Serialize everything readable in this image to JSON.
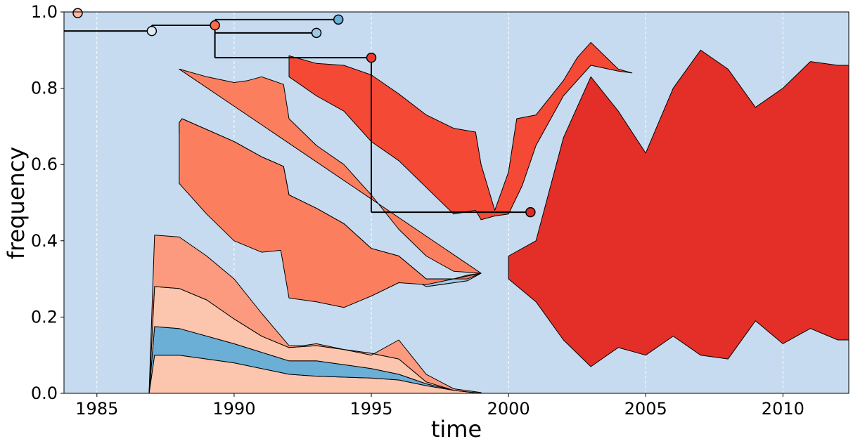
{
  "chart_data": {
    "type": "area",
    "title": "",
    "xlabel": "time",
    "ylabel": "frequency",
    "xlim": [
      1983.8,
      2012.4
    ],
    "ylim": [
      0.0,
      1.0
    ],
    "x_ticks": [
      1985,
      1990,
      1995,
      2000,
      2005,
      2010
    ],
    "y_ticks": [
      0.0,
      0.2,
      0.4,
      0.6,
      0.8,
      1.0
    ],
    "x_tick_labels": [
      "1985",
      "1990",
      "1995",
      "2000",
      "2005",
      "2010"
    ],
    "y_tick_labels": [
      "0.0",
      "0.2",
      "0.4",
      "0.6",
      "0.8",
      "1.0"
    ],
    "vertical_gridlines": true,
    "background_color": "#c6dbef",
    "bands": [
      {
        "color": "#fcc5ad",
        "upper": [
          [
            1986.9,
            0.0
          ],
          [
            1987.1,
            0.1
          ],
          [
            1988,
            0.1
          ],
          [
            1990,
            0.08
          ],
          [
            1992,
            0.05
          ],
          [
            1993,
            0.045
          ],
          [
            1995,
            0.04
          ],
          [
            1996,
            0.035
          ],
          [
            1997,
            0.02
          ],
          [
            1998,
            0.008
          ],
          [
            1999,
            0.0
          ]
        ],
        "lower": [
          [
            1999,
            0.0
          ],
          [
            1986.9,
            0.0
          ]
        ]
      },
      {
        "color": "#6baed6",
        "upper": [
          [
            1986.9,
            0.0
          ],
          [
            1987.1,
            0.175
          ],
          [
            1988,
            0.17
          ],
          [
            1990,
            0.13
          ],
          [
            1992,
            0.085
          ],
          [
            1993,
            0.085
          ],
          [
            1995,
            0.065
          ],
          [
            1996,
            0.05
          ],
          [
            1997,
            0.025
          ],
          [
            1998,
            0.008
          ],
          [
            1999,
            0.0
          ]
        ],
        "lower": [
          [
            1999,
            0.0
          ],
          [
            1998,
            0.008
          ],
          [
            1997,
            0.02
          ],
          [
            1996,
            0.035
          ],
          [
            1995,
            0.04
          ],
          [
            1993,
            0.045
          ],
          [
            1992,
            0.05
          ],
          [
            1990,
            0.08
          ],
          [
            1988,
            0.1
          ],
          [
            1987.1,
            0.1
          ],
          [
            1986.9,
            0.0
          ]
        ]
      },
      {
        "color": "#fcc5ad",
        "upper": [
          [
            1986.9,
            0.0
          ],
          [
            1987.1,
            0.28
          ],
          [
            1988,
            0.275
          ],
          [
            1989,
            0.245
          ],
          [
            1990,
            0.195
          ],
          [
            1991,
            0.15
          ],
          [
            1992,
            0.12
          ],
          [
            1993,
            0.125
          ],
          [
            1994,
            0.115
          ],
          [
            1995,
            0.105
          ],
          [
            1996,
            0.09
          ],
          [
            1997,
            0.03
          ],
          [
            1998,
            0.008
          ],
          [
            1999,
            0.0
          ]
        ],
        "lower": [
          [
            1999,
            0.0
          ],
          [
            1998,
            0.008
          ],
          [
            1997,
            0.025
          ],
          [
            1996,
            0.05
          ],
          [
            1995,
            0.065
          ],
          [
            1993,
            0.085
          ],
          [
            1992,
            0.085
          ],
          [
            1990,
            0.13
          ],
          [
            1988,
            0.17
          ],
          [
            1987.1,
            0.175
          ],
          [
            1986.9,
            0.0
          ]
        ]
      },
      {
        "color": "#fb9a7f",
        "upper": [
          [
            1986.9,
            0.0
          ],
          [
            1987.1,
            0.415
          ],
          [
            1988,
            0.41
          ],
          [
            1989,
            0.36
          ],
          [
            1990,
            0.3
          ],
          [
            1991,
            0.21
          ],
          [
            1992,
            0.125
          ],
          [
            1992.5,
            0.125
          ],
          [
            1993,
            0.13
          ],
          [
            1994,
            0.115
          ],
          [
            1995,
            0.1
          ],
          [
            1996,
            0.14
          ],
          [
            1997,
            0.05
          ],
          [
            1998,
            0.012
          ],
          [
            1999,
            0.002
          ]
        ],
        "lower": [
          [
            1999,
            0.0
          ],
          [
            1998,
            0.008
          ],
          [
            1997,
            0.03
          ],
          [
            1996,
            0.09
          ],
          [
            1995,
            0.105
          ],
          [
            1994,
            0.115
          ],
          [
            1993,
            0.125
          ],
          [
            1992,
            0.12
          ],
          [
            1991,
            0.15
          ],
          [
            1990,
            0.195
          ],
          [
            1989,
            0.245
          ],
          [
            1988,
            0.275
          ],
          [
            1987.1,
            0.28
          ],
          [
            1986.9,
            0.0
          ]
        ]
      },
      {
        "color": "#fb7f5f",
        "upper": [
          [
            1988,
            0.71
          ],
          [
            1988.1,
            0.72
          ],
          [
            1990,
            0.66
          ],
          [
            1991,
            0.62
          ],
          [
            1991.8,
            0.595
          ],
          [
            1992,
            0.52
          ],
          [
            1993,
            0.485
          ],
          [
            1994,
            0.445
          ],
          [
            1995,
            0.38
          ],
          [
            1996,
            0.36
          ],
          [
            1997,
            0.3
          ],
          [
            1998,
            0.3
          ],
          [
            1998.5,
            0.31
          ],
          [
            1999,
            0.315
          ]
        ],
        "lower": [
          [
            1999,
            0.315
          ],
          [
            1998.5,
            0.295
          ],
          [
            1997,
            0.28
          ],
          [
            1996,
            0.32
          ],
          [
            1995,
            0.355
          ],
          [
            1993,
            0.435
          ],
          [
            1992.2,
            0.465
          ],
          [
            1991.8,
            0.5
          ],
          [
            1991,
            0.52
          ],
          [
            1990,
            0.57
          ],
          [
            1988,
            0.68
          ]
        ]
      },
      {
        "color": "#9ecae1",
        "upper": [
          [
            1988,
            0.68
          ],
          [
            1990,
            0.57
          ],
          [
            1991,
            0.52
          ],
          [
            1991.8,
            0.5
          ],
          [
            1992.2,
            0.465
          ],
          [
            1993,
            0.435
          ],
          [
            1995,
            0.355
          ],
          [
            1996,
            0.32
          ],
          [
            1997,
            0.28
          ],
          [
            1998.5,
            0.295
          ],
          [
            1999,
            0.315
          ]
        ],
        "lower": [
          [
            1999,
            0.315
          ],
          [
            1998.5,
            0.3
          ],
          [
            1997,
            0.3
          ],
          [
            1996,
            0.36
          ],
          [
            1995,
            0.38
          ],
          [
            1994,
            0.445
          ],
          [
            1993,
            0.485
          ],
          [
            1992,
            0.52
          ],
          [
            1991.8,
            0.595
          ],
          [
            1991,
            0.62
          ],
          [
            1990,
            0.66
          ],
          [
            1988.1,
            0.72
          ],
          [
            1988,
            0.71
          ]
        ]
      },
      {
        "color": "#fb7f5f",
        "upper": [
          [
            1988,
            0.85
          ],
          [
            1989,
            0.83
          ],
          [
            1990,
            0.815
          ],
          [
            1990.5,
            0.82
          ],
          [
            1991,
            0.83
          ],
          [
            1991.8,
            0.81
          ],
          [
            1992,
            0.72
          ],
          [
            1993,
            0.65
          ],
          [
            1994,
            0.6
          ],
          [
            1995,
            0.52
          ],
          [
            1996,
            0.43
          ],
          [
            1997,
            0.36
          ],
          [
            1998,
            0.32
          ],
          [
            1999,
            0.315
          ]
        ],
        "lower": [
          [
            1999,
            0.315
          ],
          [
            1998,
            0.3
          ],
          [
            1997,
            0.3
          ],
          [
            1996,
            0.36
          ],
          [
            1995,
            0.38
          ],
          [
            1994,
            0.445
          ],
          [
            1993,
            0.485
          ],
          [
            1992,
            0.52
          ],
          [
            1991.8,
            0.595
          ],
          [
            1991,
            0.62
          ],
          [
            1990,
            0.66
          ],
          [
            1988.1,
            0.72
          ],
          [
            1988,
            0.71
          ],
          [
            1988,
            0.55
          ],
          [
            1989,
            0.47
          ],
          [
            1990,
            0.4
          ],
          [
            1991,
            0.37
          ],
          [
            1991.7,
            0.375
          ],
          [
            1992,
            0.25
          ],
          [
            1993,
            0.24
          ],
          [
            1994,
            0.225
          ],
          [
            1995,
            0.255
          ],
          [
            1996,
            0.29
          ],
          [
            1997,
            0.285
          ],
          [
            1998,
            0.3
          ],
          [
            1999,
            0.315
          ]
        ]
      },
      {
        "color": "#f34935",
        "upper": [
          [
            1992,
            0.885
          ],
          [
            1993,
            0.865
          ],
          [
            1994,
            0.86
          ],
          [
            1995,
            0.835
          ],
          [
            1996,
            0.785
          ],
          [
            1997,
            0.73
          ],
          [
            1998,
            0.695
          ],
          [
            1998.8,
            0.685
          ],
          [
            1999,
            0.6
          ],
          [
            1999.5,
            0.48
          ],
          [
            2000,
            0.58
          ],
          [
            2000.3,
            0.72
          ],
          [
            2001,
            0.73
          ],
          [
            2002,
            0.82
          ],
          [
            2002.5,
            0.88
          ],
          [
            2003,
            0.92
          ],
          [
            2004,
            0.85
          ],
          [
            2004.5,
            0.84
          ]
        ],
        "lower": [
          [
            2004.5,
            0.84
          ],
          [
            2004,
            0.845
          ],
          [
            2003,
            0.86
          ],
          [
            2002,
            0.78
          ],
          [
            2001,
            0.65
          ],
          [
            2000.5,
            0.545
          ],
          [
            2000,
            0.47
          ],
          [
            1999.5,
            0.465
          ],
          [
            1999,
            0.455
          ],
          [
            1998.8,
            0.48
          ],
          [
            1998,
            0.47
          ],
          [
            1997,
            0.54
          ],
          [
            1996,
            0.61
          ],
          [
            1995,
            0.66
          ],
          [
            1994,
            0.74
          ],
          [
            1993,
            0.78
          ],
          [
            1992,
            0.83
          ]
        ]
      },
      {
        "color": "#e32f27",
        "upper": [
          [
            2000,
            0.36
          ],
          [
            2001,
            0.4
          ],
          [
            2002,
            0.67
          ],
          [
            2003,
            0.83
          ],
          [
            2004,
            0.74
          ],
          [
            2005,
            0.63
          ],
          [
            2006,
            0.8
          ],
          [
            2007,
            0.9
          ],
          [
            2008,
            0.85
          ],
          [
            2009,
            0.75
          ],
          [
            2010,
            0.8
          ],
          [
            2011,
            0.87
          ],
          [
            2012,
            0.86
          ],
          [
            2012.4,
            0.86
          ]
        ],
        "lower": [
          [
            2012.4,
            0.14
          ],
          [
            2012,
            0.14
          ],
          [
            2011,
            0.17
          ],
          [
            2010,
            0.13
          ],
          [
            2009,
            0.19
          ],
          [
            2008,
            0.09
          ],
          [
            2007,
            0.1
          ],
          [
            2006,
            0.15
          ],
          [
            2005,
            0.1
          ],
          [
            2004,
            0.12
          ],
          [
            2003,
            0.07
          ],
          [
            2002,
            0.14
          ],
          [
            2001,
            0.24
          ],
          [
            2000,
            0.3
          ]
        ]
      }
    ],
    "tree_markers": [
      {
        "x": 1984.3,
        "y": 0.997,
        "color": "#fcbba1"
      },
      {
        "x": 1987.0,
        "y": 0.95,
        "color": "#deebf7"
      },
      {
        "x": 1989.3,
        "y": 0.965,
        "color": "#fb6a4a"
      },
      {
        "x": 1993.0,
        "y": 0.945,
        "color": "#9ecae1"
      },
      {
        "x": 1993.8,
        "y": 0.98,
        "color": "#6baed6"
      },
      {
        "x": 1995.0,
        "y": 0.88,
        "color": "#ef3b2c"
      },
      {
        "x": 2000.8,
        "y": 0.475,
        "color": "#de2d26"
      }
    ]
  }
}
